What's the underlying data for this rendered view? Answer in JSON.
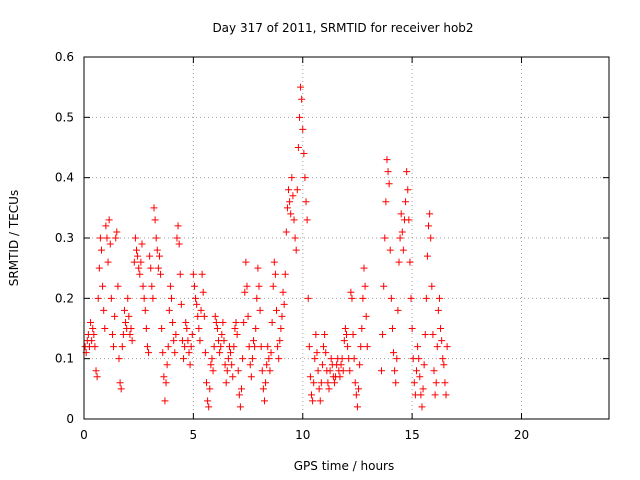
{
  "chart_data": {
    "type": "scatter",
    "title": "Day 317 of 2011, SRMTID for receiver hob2",
    "xlabel": "GPS time / hours",
    "ylabel": "SRMTID / TECUs",
    "xlim": [
      0,
      24
    ],
    "ylim": [
      0,
      0.6
    ],
    "x_ticks": [
      "0",
      "5",
      "10",
      "15",
      "20"
    ],
    "y_ticks": [
      "0",
      "0.1",
      "0.2",
      "0.3",
      "0.4",
      "0.5",
      "0.6"
    ],
    "grid": true,
    "marker": "plus",
    "color": "#ff0000",
    "series": [
      {
        "name": "SRMTID",
        "points": [
          [
            0.05,
            0.12
          ],
          [
            0.1,
            0.11
          ],
          [
            0.15,
            0.13
          ],
          [
            0.2,
            0.14
          ],
          [
            0.25,
            0.12
          ],
          [
            0.3,
            0.16
          ],
          [
            0.35,
            0.13
          ],
          [
            0.4,
            0.15
          ],
          [
            0.45,
            0.14
          ],
          [
            0.5,
            0.12
          ],
          [
            0.55,
            0.08
          ],
          [
            0.6,
            0.07
          ],
          [
            0.65,
            0.2
          ],
          [
            0.7,
            0.25
          ],
          [
            0.75,
            0.3
          ],
          [
            0.8,
            0.28
          ],
          [
            0.85,
            0.22
          ],
          [
            0.9,
            0.18
          ],
          [
            0.95,
            0.15
          ],
          [
            1.0,
            0.32
          ],
          [
            1.05,
            0.3
          ],
          [
            1.1,
            0.26
          ],
          [
            1.15,
            0.33
          ],
          [
            1.2,
            0.29
          ],
          [
            1.25,
            0.2
          ],
          [
            1.3,
            0.14
          ],
          [
            1.35,
            0.12
          ],
          [
            1.4,
            0.17
          ],
          [
            1.45,
            0.3
          ],
          [
            1.5,
            0.31
          ],
          [
            1.55,
            0.22
          ],
          [
            1.6,
            0.1
          ],
          [
            1.65,
            0.06
          ],
          [
            1.7,
            0.05
          ],
          [
            1.75,
            0.12
          ],
          [
            1.8,
            0.14
          ],
          [
            1.85,
            0.18
          ],
          [
            1.9,
            0.16
          ],
          [
            1.95,
            0.15
          ],
          [
            2.0,
            0.2
          ],
          [
            2.05,
            0.17
          ],
          [
            2.1,
            0.14
          ],
          [
            2.15,
            0.15
          ],
          [
            2.2,
            0.13
          ],
          [
            2.3,
            0.26
          ],
          [
            2.35,
            0.3
          ],
          [
            2.4,
            0.28
          ],
          [
            2.45,
            0.27
          ],
          [
            2.5,
            0.25
          ],
          [
            2.55,
            0.24
          ],
          [
            2.6,
            0.26
          ],
          [
            2.65,
            0.29
          ],
          [
            2.7,
            0.22
          ],
          [
            2.75,
            0.2
          ],
          [
            2.8,
            0.18
          ],
          [
            2.85,
            0.15
          ],
          [
            2.9,
            0.12
          ],
          [
            2.95,
            0.11
          ],
          [
            3.0,
            0.27
          ],
          [
            3.05,
            0.25
          ],
          [
            3.1,
            0.22
          ],
          [
            3.15,
            0.2
          ],
          [
            3.2,
            0.35
          ],
          [
            3.25,
            0.33
          ],
          [
            3.3,
            0.3
          ],
          [
            3.35,
            0.28
          ],
          [
            3.4,
            0.25
          ],
          [
            3.45,
            0.27
          ],
          [
            3.5,
            0.24
          ],
          [
            3.55,
            0.15
          ],
          [
            3.6,
            0.11
          ],
          [
            3.65,
            0.07
          ],
          [
            3.7,
            0.03
          ],
          [
            3.75,
            0.06
          ],
          [
            3.8,
            0.09
          ],
          [
            3.85,
            0.12
          ],
          [
            3.9,
            0.18
          ],
          [
            3.95,
            0.22
          ],
          [
            4.0,
            0.2
          ],
          [
            4.05,
            0.16
          ],
          [
            4.1,
            0.13
          ],
          [
            4.15,
            0.11
          ],
          [
            4.2,
            0.14
          ],
          [
            4.25,
            0.3
          ],
          [
            4.3,
            0.32
          ],
          [
            4.35,
            0.29
          ],
          [
            4.4,
            0.24
          ],
          [
            4.45,
            0.19
          ],
          [
            4.5,
            0.13
          ],
          [
            4.55,
            0.1
          ],
          [
            4.6,
            0.12
          ],
          [
            4.65,
            0.16
          ],
          [
            4.7,
            0.15
          ],
          [
            4.75,
            0.13
          ],
          [
            4.8,
            0.11
          ],
          [
            4.85,
            0.09
          ],
          [
            4.9,
            0.12
          ],
          [
            4.95,
            0.14
          ],
          [
            5.0,
            0.24
          ],
          [
            5.05,
            0.22
          ],
          [
            5.1,
            0.2
          ],
          [
            5.15,
            0.19
          ],
          [
            5.2,
            0.17
          ],
          [
            5.25,
            0.15
          ],
          [
            5.3,
            0.13
          ],
          [
            5.35,
            0.18
          ],
          [
            5.4,
            0.24
          ],
          [
            5.45,
            0.21
          ],
          [
            5.5,
            0.17
          ],
          [
            5.55,
            0.11
          ],
          [
            5.6,
            0.06
          ],
          [
            5.65,
            0.03
          ],
          [
            5.7,
            0.02
          ],
          [
            5.75,
            0.05
          ],
          [
            5.8,
            0.09
          ],
          [
            5.85,
            0.1
          ],
          [
            5.9,
            0.08
          ],
          [
            5.95,
            0.12
          ],
          [
            6.0,
            0.17
          ],
          [
            6.05,
            0.16
          ],
          [
            6.1,
            0.15
          ],
          [
            6.15,
            0.13
          ],
          [
            6.2,
            0.11
          ],
          [
            6.25,
            0.12
          ],
          [
            6.3,
            0.14
          ],
          [
            6.35,
            0.16
          ],
          [
            6.4,
            0.13
          ],
          [
            6.45,
            0.09
          ],
          [
            6.5,
            0.06
          ],
          [
            6.55,
            0.08
          ],
          [
            6.6,
            0.1
          ],
          [
            6.65,
            0.12
          ],
          [
            6.7,
            0.11
          ],
          [
            6.75,
            0.09
          ],
          [
            6.8,
            0.07
          ],
          [
            6.85,
            0.12
          ],
          [
            6.9,
            0.15
          ],
          [
            6.95,
            0.16
          ],
          [
            7.0,
            0.14
          ],
          [
            7.05,
            0.08
          ],
          [
            7.1,
            0.04
          ],
          [
            7.15,
            0.02
          ],
          [
            7.2,
            0.05
          ],
          [
            7.25,
            0.1
          ],
          [
            7.3,
            0.16
          ],
          [
            7.35,
            0.21
          ],
          [
            7.4,
            0.26
          ],
          [
            7.45,
            0.22
          ],
          [
            7.5,
            0.17
          ],
          [
            7.55,
            0.12
          ],
          [
            7.6,
            0.09
          ],
          [
            7.65,
            0.07
          ],
          [
            7.7,
            0.1
          ],
          [
            7.75,
            0.13
          ],
          [
            7.8,
            0.12
          ],
          [
            7.85,
            0.15
          ],
          [
            7.9,
            0.2
          ],
          [
            7.95,
            0.25
          ],
          [
            8.0,
            0.22
          ],
          [
            8.05,
            0.18
          ],
          [
            8.1,
            0.12
          ],
          [
            8.15,
            0.08
          ],
          [
            8.2,
            0.05
          ],
          [
            8.25,
            0.03
          ],
          [
            8.3,
            0.06
          ],
          [
            8.35,
            0.09
          ],
          [
            8.4,
            0.12
          ],
          [
            8.45,
            0.1
          ],
          [
            8.5,
            0.08
          ],
          [
            8.55,
            0.11
          ],
          [
            8.6,
            0.16
          ],
          [
            8.65,
            0.22
          ],
          [
            8.7,
            0.26
          ],
          [
            8.75,
            0.24
          ],
          [
            8.8,
            0.18
          ],
          [
            8.85,
            0.12
          ],
          [
            8.9,
            0.1
          ],
          [
            8.95,
            0.13
          ],
          [
            9.0,
            0.15
          ],
          [
            9.05,
            0.17
          ],
          [
            9.1,
            0.21
          ],
          [
            9.15,
            0.19
          ],
          [
            9.2,
            0.24
          ],
          [
            9.25,
            0.31
          ],
          [
            9.3,
            0.35
          ],
          [
            9.35,
            0.38
          ],
          [
            9.4,
            0.36
          ],
          [
            9.45,
            0.34
          ],
          [
            9.5,
            0.4
          ],
          [
            9.55,
            0.37
          ],
          [
            9.6,
            0.33
          ],
          [
            9.65,
            0.3
          ],
          [
            9.7,
            0.28
          ],
          [
            9.75,
            0.38
          ],
          [
            9.8,
            0.45
          ],
          [
            9.85,
            0.5
          ],
          [
            9.9,
            0.55
          ],
          [
            9.95,
            0.53
          ],
          [
            10.0,
            0.48
          ],
          [
            10.05,
            0.44
          ],
          [
            10.1,
            0.4
          ],
          [
            10.15,
            0.36
          ],
          [
            10.2,
            0.33
          ],
          [
            10.25,
            0.2
          ],
          [
            10.3,
            0.12
          ],
          [
            10.35,
            0.07
          ],
          [
            10.4,
            0.04
          ],
          [
            10.45,
            0.03
          ],
          [
            10.5,
            0.06
          ],
          [
            10.55,
            0.1
          ],
          [
            10.6,
            0.14
          ],
          [
            10.65,
            0.11
          ],
          [
            10.7,
            0.08
          ],
          [
            10.75,
            0.05
          ],
          [
            10.8,
            0.03
          ],
          [
            10.85,
            0.06
          ],
          [
            10.9,
            0.09
          ],
          [
            10.95,
            0.12
          ],
          [
            11.0,
            0.14
          ],
          [
            11.05,
            0.11
          ],
          [
            11.1,
            0.08
          ],
          [
            11.15,
            0.06
          ],
          [
            11.2,
            0.05
          ],
          [
            11.25,
            0.08
          ],
          [
            11.3,
            0.1
          ],
          [
            11.35,
            0.09
          ],
          [
            11.4,
            0.07
          ],
          [
            11.45,
            0.06
          ],
          [
            11.5,
            0.07
          ],
          [
            11.55,
            0.09
          ],
          [
            11.6,
            0.1
          ],
          [
            11.65,
            0.08
          ],
          [
            11.7,
            0.07
          ],
          [
            11.75,
            0.09
          ],
          [
            11.8,
            0.1
          ],
          [
            11.85,
            0.08
          ],
          [
            11.9,
            0.13
          ],
          [
            11.95,
            0.15
          ],
          [
            12.0,
            0.14
          ],
          [
            12.05,
            0.12
          ],
          [
            12.1,
            0.1
          ],
          [
            12.15,
            0.08
          ],
          [
            12.2,
            0.21
          ],
          [
            12.25,
            0.2
          ],
          [
            12.3,
            0.14
          ],
          [
            12.35,
            0.1
          ],
          [
            12.4,
            0.06
          ],
          [
            12.45,
            0.04
          ],
          [
            12.5,
            0.02
          ],
          [
            12.55,
            0.05
          ],
          [
            12.6,
            0.09
          ],
          [
            12.65,
            0.12
          ],
          [
            12.7,
            0.15
          ],
          [
            12.75,
            0.2
          ],
          [
            12.8,
            0.25
          ],
          [
            12.85,
            0.22
          ],
          [
            12.9,
            0.17
          ],
          [
            12.95,
            0.12
          ],
          [
            13.6,
            0.08
          ],
          [
            13.65,
            0.14
          ],
          [
            13.7,
            0.22
          ],
          [
            13.75,
            0.3
          ],
          [
            13.8,
            0.36
          ],
          [
            13.85,
            0.43
          ],
          [
            13.9,
            0.41
          ],
          [
            13.95,
            0.39
          ],
          [
            14.0,
            0.28
          ],
          [
            14.05,
            0.2
          ],
          [
            14.1,
            0.15
          ],
          [
            14.15,
            0.11
          ],
          [
            14.2,
            0.08
          ],
          [
            14.25,
            0.06
          ],
          [
            14.3,
            0.1
          ],
          [
            14.35,
            0.18
          ],
          [
            14.4,
            0.26
          ],
          [
            14.45,
            0.3
          ],
          [
            14.5,
            0.34
          ],
          [
            14.55,
            0.31
          ],
          [
            14.6,
            0.28
          ],
          [
            14.65,
            0.33
          ],
          [
            14.7,
            0.36
          ],
          [
            14.75,
            0.41
          ],
          [
            14.8,
            0.38
          ],
          [
            14.85,
            0.33
          ],
          [
            14.9,
            0.26
          ],
          [
            14.95,
            0.2
          ],
          [
            15.0,
            0.15
          ],
          [
            15.05,
            0.1
          ],
          [
            15.1,
            0.06
          ],
          [
            15.15,
            0.04
          ],
          [
            15.2,
            0.08
          ],
          [
            15.25,
            0.12
          ],
          [
            15.3,
            0.1
          ],
          [
            15.35,
            0.07
          ],
          [
            15.4,
            0.04
          ],
          [
            15.45,
            0.02
          ],
          [
            15.5,
            0.05
          ],
          [
            15.55,
            0.09
          ],
          [
            15.6,
            0.14
          ],
          [
            15.65,
            0.2
          ],
          [
            15.7,
            0.27
          ],
          [
            15.75,
            0.32
          ],
          [
            15.8,
            0.34
          ],
          [
            15.85,
            0.3
          ],
          [
            15.9,
            0.22
          ],
          [
            15.95,
            0.14
          ],
          [
            16.0,
            0.08
          ],
          [
            16.05,
            0.04
          ],
          [
            16.1,
            0.06
          ],
          [
            16.15,
            0.12
          ],
          [
            16.2,
            0.18
          ],
          [
            16.25,
            0.2
          ],
          [
            16.3,
            0.15
          ],
          [
            16.35,
            0.13
          ],
          [
            16.4,
            0.1
          ],
          [
            16.45,
            0.09
          ],
          [
            16.5,
            0.06
          ],
          [
            16.55,
            0.04
          ],
          [
            16.6,
            0.12
          ]
        ]
      }
    ]
  }
}
